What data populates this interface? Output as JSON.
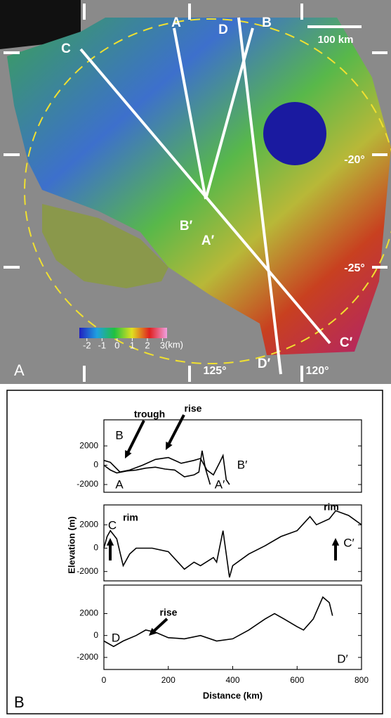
{
  "panel_labels": [
    "A",
    "B"
  ],
  "map": {
    "line_labels": [
      "C",
      "A",
      "D",
      "B",
      "B′",
      "A′",
      "C′",
      "D′"
    ],
    "scale_bar": "100 km",
    "latitudes": [
      "-20°",
      "-25°"
    ],
    "longitudes": [
      "125°",
      "120°"
    ],
    "colorbar": {
      "clim": [
        -2.5,
        3.3
      ],
      "ticks": [
        -2,
        -1,
        0,
        1,
        2,
        3
      ],
      "unit": "(km)"
    }
  },
  "chart_data": [
    {
      "type": "line",
      "xlim": [
        0,
        800
      ],
      "ylim": [
        -2800,
        4700
      ],
      "yticks": [
        -2000,
        0,
        2000
      ],
      "annotations": [
        "B",
        "A",
        "B′",
        "A′",
        "trough",
        "rise"
      ],
      "series": [
        {
          "color": "#000000",
          "x": [
            0,
            20,
            40,
            70,
            100,
            130,
            160,
            190,
            220,
            250,
            280,
            295,
            305,
            315,
            330
          ],
          "values": [
            0,
            -500,
            -800,
            -600,
            -500,
            -300,
            -200,
            -400,
            -500,
            -1200,
            -1000,
            -700,
            1500,
            -300,
            -2000
          ]
        },
        {
          "color": "#000000",
          "x": [
            0,
            20,
            50,
            80,
            120,
            160,
            200,
            240,
            280,
            300,
            320,
            340,
            360,
            370,
            380,
            390
          ],
          "values": [
            500,
            300,
            -700,
            -500,
            0,
            600,
            800,
            200,
            500,
            700,
            -500,
            -1000,
            300,
            1000,
            -1500,
            -2000
          ]
        }
      ]
    },
    {
      "type": "line",
      "xlim": [
        0,
        800
      ],
      "ylim": [
        -2800,
        3700
      ],
      "yticks": [
        -2000,
        0,
        2000
      ],
      "y_label": "Elevation (m)",
      "annotations": [
        "C",
        "rim",
        "rim",
        "C′"
      ],
      "series": [
        {
          "color": "#000000",
          "x": [
            0,
            10,
            20,
            40,
            60,
            80,
            100,
            150,
            200,
            250,
            280,
            300,
            340,
            350,
            370,
            380,
            390,
            400,
            450,
            500,
            550,
            600,
            640,
            660,
            700,
            720,
            760,
            800
          ],
          "values": [
            0,
            1000,
            1500,
            800,
            -1500,
            -500,
            0,
            0,
            -300,
            -1800,
            -1200,
            -1500,
            -800,
            -1200,
            1500,
            -500,
            -2500,
            -1500,
            -500,
            200,
            1000,
            1500,
            2700,
            2000,
            2500,
            3200,
            2800,
            2000
          ]
        }
      ]
    },
    {
      "type": "line",
      "xlim": [
        0,
        800
      ],
      "xticks": [
        0,
        200,
        400,
        600,
        800
      ],
      "ylim": [
        -3100,
        4600
      ],
      "yticks": [
        -2000,
        0,
        2000
      ],
      "x_label": "Distance (km)",
      "annotations": [
        "D",
        "rise",
        "D′"
      ],
      "series": [
        {
          "color": "#000000",
          "x": [
            0,
            30,
            60,
            100,
            130,
            160,
            200,
            250,
            300,
            350,
            400,
            450,
            500,
            530,
            560,
            600,
            620,
            650,
            680,
            700,
            710
          ],
          "values": [
            -500,
            -1000,
            -500,
            0,
            500,
            300,
            -200,
            -300,
            0,
            -500,
            -300,
            500,
            1500,
            2000,
            1500,
            800,
            500,
            1500,
            3500,
            3000,
            1800
          ]
        }
      ]
    }
  ]
}
